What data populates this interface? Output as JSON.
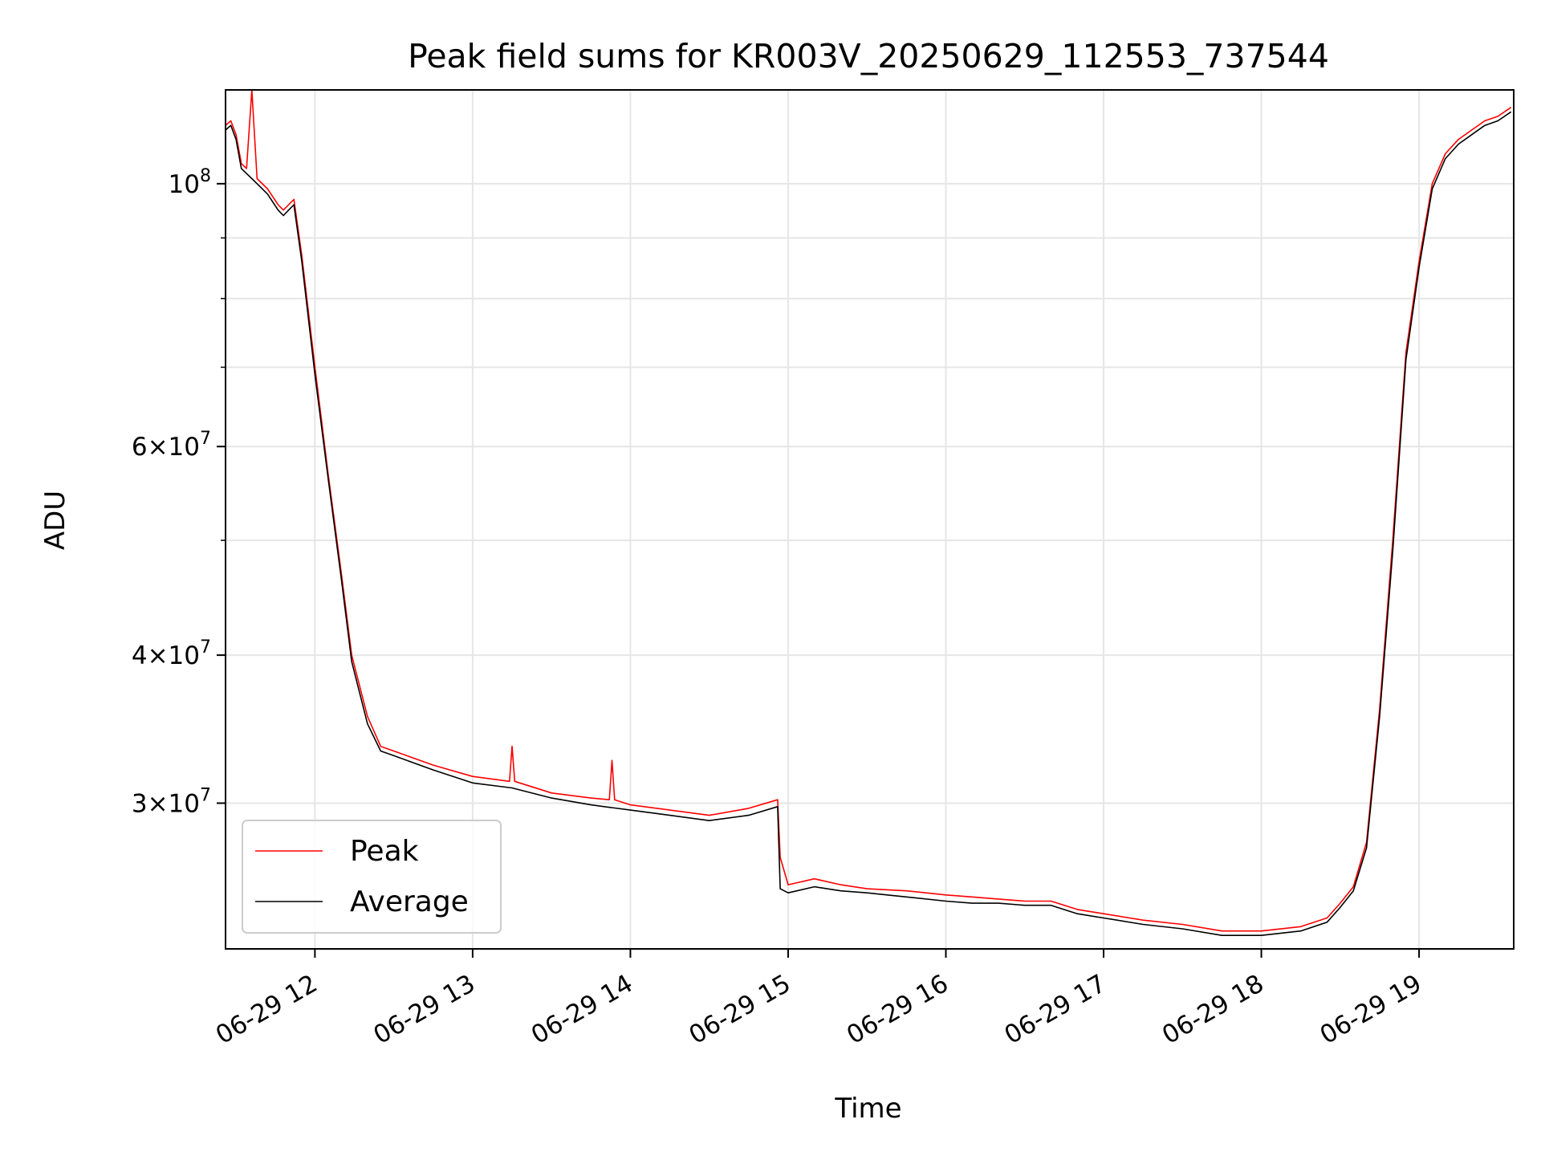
{
  "chart_data": {
    "type": "line",
    "title": "Peak field sums for KR003V_20250629_112553_737544",
    "xlabel": "Time",
    "ylabel": "ADU",
    "y_scale": "log",
    "xlim": [
      "2025-06-29T11:26:00",
      "2025-06-29T19:36:00"
    ],
    "ylim": [
      22600000,
      120000000
    ],
    "x_ticks": [
      {
        "value": "2025-06-29T12:00:00",
        "label": "06-29 12"
      },
      {
        "value": "2025-06-29T13:00:00",
        "label": "06-29 13"
      },
      {
        "value": "2025-06-29T14:00:00",
        "label": "06-29 14"
      },
      {
        "value": "2025-06-29T15:00:00",
        "label": "06-29 15"
      },
      {
        "value": "2025-06-29T16:00:00",
        "label": "06-29 16"
      },
      {
        "value": "2025-06-29T17:00:00",
        "label": "06-29 17"
      },
      {
        "value": "2025-06-29T18:00:00",
        "label": "06-29 18"
      },
      {
        "value": "2025-06-29T19:00:00",
        "label": "06-29 19"
      }
    ],
    "y_ticks": [
      {
        "value": 30000000,
        "coef": "3",
        "exp": "7"
      },
      {
        "value": 40000000,
        "coef": "4",
        "exp": "7"
      },
      {
        "value": 60000000,
        "coef": "6",
        "exp": "7"
      },
      {
        "value": 100000000,
        "coef": "",
        "exp": "8"
      }
    ],
    "y_minor_ticks": [
      50000000,
      70000000,
      80000000,
      90000000
    ],
    "grid": true,
    "legend": {
      "position": "lower-left"
    },
    "series": [
      {
        "name": "Peak",
        "color": "#ff0000",
        "x": [
          "2025-06-29T11:26:00",
          "2025-06-29T11:28:00",
          "2025-06-29T11:30:00",
          "2025-06-29T11:32:00",
          "2025-06-29T11:34:00",
          "2025-06-29T11:36:00",
          "2025-06-29T11:38:00",
          "2025-06-29T11:42:00",
          "2025-06-29T11:46:00",
          "2025-06-29T11:48:00",
          "2025-06-29T11:50:00",
          "2025-06-29T11:52:00",
          "2025-06-29T11:55:00",
          "2025-06-29T12:00:00",
          "2025-06-29T12:05:00",
          "2025-06-29T12:10:00",
          "2025-06-29T12:14:00",
          "2025-06-29T12:20:00",
          "2025-06-29T12:25:00",
          "2025-06-29T12:30:00",
          "2025-06-29T12:45:00",
          "2025-06-29T13:00:00",
          "2025-06-29T13:14:00",
          "2025-06-29T13:15:00",
          "2025-06-29T13:16:00",
          "2025-06-29T13:30:00",
          "2025-06-29T13:45:00",
          "2025-06-29T13:52:00",
          "2025-06-29T13:53:00",
          "2025-06-29T13:54:00",
          "2025-06-29T14:00:00",
          "2025-06-29T14:15:00",
          "2025-06-29T14:30:00",
          "2025-06-29T14:45:00",
          "2025-06-29T14:56:00",
          "2025-06-29T14:57:00",
          "2025-06-29T15:00:00",
          "2025-06-29T15:10:00",
          "2025-06-29T15:20:00",
          "2025-06-29T15:30:00",
          "2025-06-29T15:45:00",
          "2025-06-29T16:00:00",
          "2025-06-29T16:10:00",
          "2025-06-29T16:20:00",
          "2025-06-29T16:30:00",
          "2025-06-29T16:40:00",
          "2025-06-29T16:50:00",
          "2025-06-29T17:00:00",
          "2025-06-29T17:15:00",
          "2025-06-29T17:30:00",
          "2025-06-29T17:45:00",
          "2025-06-29T18:00:00",
          "2025-06-29T18:15:00",
          "2025-06-29T18:25:00",
          "2025-06-29T18:30:00",
          "2025-06-29T18:35:00",
          "2025-06-29T18:40:00",
          "2025-06-29T18:45:00",
          "2025-06-29T18:50:00",
          "2025-06-29T18:55:00",
          "2025-06-29T19:00:00",
          "2025-06-29T19:05:00",
          "2025-06-29T19:10:00",
          "2025-06-29T19:15:00",
          "2025-06-29T19:20:00",
          "2025-06-29T19:25:00",
          "2025-06-29T19:30:00",
          "2025-06-29T19:35:00"
        ],
        "y": [
          112000000,
          113000000,
          110000000,
          104000000,
          103000000,
          120000000,
          101000000,
          99000000,
          96000000,
          95000000,
          96000000,
          97000000,
          87000000,
          70000000,
          57000000,
          47000000,
          40000000,
          35500000,
          33500000,
          33200000,
          32300000,
          31600000,
          31300000,
          33500000,
          31300000,
          30600000,
          30300000,
          30200000,
          32600000,
          30200000,
          29900000,
          29600000,
          29300000,
          29700000,
          30200000,
          27000000,
          25600000,
          25900000,
          25600000,
          25400000,
          25300000,
          25100000,
          25000000,
          24900000,
          24800000,
          24800000,
          24400000,
          24200000,
          23900000,
          23700000,
          23400000,
          23400000,
          23600000,
          24000000,
          24700000,
          25500000,
          27800000,
          36000000,
          50000000,
          72000000,
          86000000,
          100000000,
          106000000,
          109000000,
          111000000,
          113000000,
          114000000,
          116000000
        ]
      },
      {
        "name": "Average",
        "color": "#000000",
        "x": [
          "2025-06-29T11:26:00",
          "2025-06-29T11:28:00",
          "2025-06-29T11:30:00",
          "2025-06-29T11:32:00",
          "2025-06-29T11:34:00",
          "2025-06-29T11:36:00",
          "2025-06-29T11:38:00",
          "2025-06-29T11:42:00",
          "2025-06-29T11:46:00",
          "2025-06-29T11:48:00",
          "2025-06-29T11:50:00",
          "2025-06-29T11:52:00",
          "2025-06-29T11:55:00",
          "2025-06-29T12:00:00",
          "2025-06-29T12:05:00",
          "2025-06-29T12:10:00",
          "2025-06-29T12:14:00",
          "2025-06-29T12:20:00",
          "2025-06-29T12:25:00",
          "2025-06-29T12:30:00",
          "2025-06-29T12:45:00",
          "2025-06-29T13:00:00",
          "2025-06-29T13:15:00",
          "2025-06-29T13:30:00",
          "2025-06-29T13:45:00",
          "2025-06-29T14:00:00",
          "2025-06-29T14:15:00",
          "2025-06-29T14:30:00",
          "2025-06-29T14:45:00",
          "2025-06-29T14:56:00",
          "2025-06-29T14:57:00",
          "2025-06-29T15:00:00",
          "2025-06-29T15:10:00",
          "2025-06-29T15:20:00",
          "2025-06-29T15:30:00",
          "2025-06-29T15:45:00",
          "2025-06-29T16:00:00",
          "2025-06-29T16:10:00",
          "2025-06-29T16:20:00",
          "2025-06-29T16:30:00",
          "2025-06-29T16:40:00",
          "2025-06-29T16:50:00",
          "2025-06-29T17:00:00",
          "2025-06-29T17:15:00",
          "2025-06-29T17:30:00",
          "2025-06-29T17:45:00",
          "2025-06-29T18:00:00",
          "2025-06-29T18:15:00",
          "2025-06-29T18:25:00",
          "2025-06-29T18:30:00",
          "2025-06-29T18:35:00",
          "2025-06-29T18:40:00",
          "2025-06-29T18:45:00",
          "2025-06-29T18:50:00",
          "2025-06-29T18:55:00",
          "2025-06-29T19:00:00",
          "2025-06-29T19:05:00",
          "2025-06-29T19:10:00",
          "2025-06-29T19:15:00",
          "2025-06-29T19:20:00",
          "2025-06-29T19:25:00",
          "2025-06-29T19:30:00",
          "2025-06-29T19:35:00"
        ],
        "y": [
          111000000,
          112000000,
          109000000,
          103000000,
          102000000,
          101000000,
          100000000,
          98000000,
          95000000,
          94000000,
          95000000,
          96000000,
          86000000,
          69000000,
          56500000,
          46500000,
          39500000,
          35000000,
          33200000,
          32900000,
          32000000,
          31200000,
          30900000,
          30300000,
          29900000,
          29600000,
          29300000,
          29000000,
          29300000,
          29800000,
          25400000,
          25200000,
          25500000,
          25300000,
          25200000,
          25000000,
          24800000,
          24700000,
          24700000,
          24600000,
          24600000,
          24200000,
          24000000,
          23700000,
          23500000,
          23200000,
          23200000,
          23400000,
          23800000,
          24500000,
          25300000,
          27500000,
          35500000,
          49000000,
          71000000,
          85000000,
          99000000,
          105000000,
          108000000,
          110000000,
          112000000,
          113000000,
          115000000
        ]
      }
    ]
  }
}
